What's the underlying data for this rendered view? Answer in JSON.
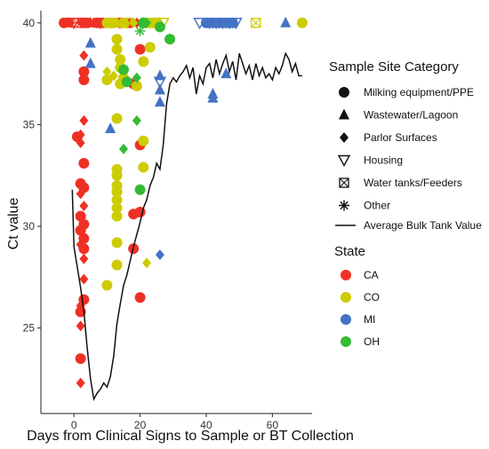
{
  "chart_data": {
    "type": "scatter",
    "title": "",
    "xlabel": "Days from Clinical Signs to Sample or BT Collection",
    "ylabel": "Ct value",
    "xlim": [
      -10,
      72
    ],
    "ylim": [
      20.8,
      40.6
    ],
    "x_ticks": [
      0,
      20,
      40,
      60
    ],
    "y_ticks": [
      25,
      30,
      35,
      40
    ],
    "grid": false,
    "legend_placement": "right",
    "legend_shape_title": "Sample Site Category",
    "legend_color_title": "State",
    "categories": [
      {
        "key": "milking",
        "label": "Milking equipment/PPE",
        "shape": "circle"
      },
      {
        "key": "wastewater",
        "label": "Wastewater/Lagoon",
        "shape": "triangle"
      },
      {
        "key": "parlor",
        "label": "Parlor Surfaces",
        "shape": "diamond"
      },
      {
        "key": "housing",
        "label": "Housing",
        "shape": "triangle-down-open"
      },
      {
        "key": "water",
        "label": "Water tanks/Feeders",
        "shape": "square-x-open"
      },
      {
        "key": "other",
        "label": "Other",
        "shape": "asterisk"
      }
    ],
    "line_legend_label": "Average Bulk Tank Value",
    "states": [
      {
        "key": "CA",
        "label": "CA",
        "color": "#ee3124"
      },
      {
        "key": "CO",
        "label": "CO",
        "color": "#cccc00"
      },
      {
        "key": "MI",
        "label": "MI",
        "color": "#4472c4"
      },
      {
        "key": "OH",
        "label": "OH",
        "color": "#33bb33"
      }
    ],
    "bulk_tank_line": [
      [
        -0.5,
        31.8
      ],
      [
        0,
        29.0
      ],
      [
        1,
        28.0
      ],
      [
        2,
        27.0
      ],
      [
        3,
        25.8
      ],
      [
        4,
        24.0
      ],
      [
        5,
        22.5
      ],
      [
        6,
        21.5
      ],
      [
        7,
        21.8
      ],
      [
        8,
        22.0
      ],
      [
        9,
        22.3
      ],
      [
        10,
        22.1
      ],
      [
        11,
        22.6
      ],
      [
        12,
        23.6
      ],
      [
        13,
        25.2
      ],
      [
        14,
        26.2
      ],
      [
        15,
        27.1
      ],
      [
        16,
        27.6
      ],
      [
        17,
        28.3
      ],
      [
        18,
        29.0
      ],
      [
        19,
        29.6
      ],
      [
        20,
        30.2
      ],
      [
        21,
        30.9
      ],
      [
        22,
        31.3
      ],
      [
        23,
        32.0
      ],
      [
        24,
        32.4
      ],
      [
        25,
        33.1
      ],
      [
        26,
        32.8
      ],
      [
        27,
        34.0
      ],
      [
        28,
        36.0
      ],
      [
        29,
        37.0
      ],
      [
        30,
        37.3
      ],
      [
        31,
        37.1
      ],
      [
        32,
        37.4
      ],
      [
        33,
        37.6
      ],
      [
        34,
        37.9
      ],
      [
        35,
        37.3
      ],
      [
        36,
        37.8
      ],
      [
        37,
        36.5
      ],
      [
        38,
        37.4
      ],
      [
        39,
        37.0
      ],
      [
        40,
        37.8
      ],
      [
        41,
        38.0
      ],
      [
        42,
        37.3
      ],
      [
        43,
        38.2
      ],
      [
        44,
        37.5
      ],
      [
        45,
        38.0
      ],
      [
        46,
        38.4
      ],
      [
        47,
        37.6
      ],
      [
        48,
        38.1
      ],
      [
        49,
        37.2
      ],
      [
        50,
        38.5
      ],
      [
        51,
        38.0
      ],
      [
        52,
        37.5
      ],
      [
        53,
        37.9
      ],
      [
        54,
        37.2
      ],
      [
        55,
        38.0
      ],
      [
        56,
        37.4
      ],
      [
        57,
        37.8
      ],
      [
        58,
        37.3
      ],
      [
        59,
        37.5
      ],
      [
        60,
        37.2
      ],
      [
        61,
        37.8
      ],
      [
        62,
        37.5
      ],
      [
        63,
        37.9
      ],
      [
        64,
        38.5
      ],
      [
        65,
        38.2
      ],
      [
        66,
        37.6
      ],
      [
        67,
        38.0
      ],
      [
        68,
        37.4
      ],
      [
        69,
        37.4
      ]
    ],
    "points": [
      {
        "x": -3,
        "y": 40,
        "cat": "milking",
        "state": "CA"
      },
      {
        "x": -2,
        "y": 40,
        "cat": "wastewater",
        "state": "CA"
      },
      {
        "x": -1,
        "y": 40,
        "cat": "parlor",
        "state": "CA"
      },
      {
        "x": 0,
        "y": 40,
        "cat": "housing",
        "state": "CA"
      },
      {
        "x": 1,
        "y": 40,
        "cat": "water",
        "state": "CA"
      },
      {
        "x": 2,
        "y": 40,
        "cat": "other",
        "state": "CA"
      },
      {
        "x": 3,
        "y": 40,
        "cat": "milking",
        "state": "CA"
      },
      {
        "x": 4,
        "y": 40,
        "cat": "milking",
        "state": "CA"
      },
      {
        "x": 5,
        "y": 40,
        "cat": "wastewater",
        "state": "CA"
      },
      {
        "x": 6,
        "y": 40,
        "cat": "parlor",
        "state": "CA"
      },
      {
        "x": 7,
        "y": 40,
        "cat": "milking",
        "state": "CA"
      },
      {
        "x": 8,
        "y": 40,
        "cat": "housing",
        "state": "CA"
      },
      {
        "x": 9,
        "y": 40,
        "cat": "milking",
        "state": "CA"
      },
      {
        "x": 14,
        "y": 40,
        "cat": "milking",
        "state": "CA"
      },
      {
        "x": 17,
        "y": 40,
        "cat": "milking",
        "state": "CA"
      },
      {
        "x": 19,
        "y": 40,
        "cat": "parlor",
        "state": "CA"
      },
      {
        "x": 21,
        "y": 40,
        "cat": "milking",
        "state": "CA"
      },
      {
        "x": 1,
        "y": 34.4,
        "cat": "milking",
        "state": "CA"
      },
      {
        "x": 2,
        "y": 34.5,
        "cat": "parlor",
        "state": "CA"
      },
      {
        "x": 3,
        "y": 35.2,
        "cat": "parlor",
        "state": "CA"
      },
      {
        "x": 2,
        "y": 34.1,
        "cat": "parlor",
        "state": "CA"
      },
      {
        "x": 3,
        "y": 38.4,
        "cat": "parlor",
        "state": "CA"
      },
      {
        "x": 3,
        "y": 37.6,
        "cat": "milking",
        "state": "CA"
      },
      {
        "x": 3,
        "y": 37.2,
        "cat": "milking",
        "state": "CA"
      },
      {
        "x": 3,
        "y": 33.1,
        "cat": "milking",
        "state": "CA"
      },
      {
        "x": 2,
        "y": 32.1,
        "cat": "milking",
        "state": "CA"
      },
      {
        "x": 3,
        "y": 31.9,
        "cat": "milking",
        "state": "CA"
      },
      {
        "x": 2,
        "y": 31.6,
        "cat": "parlor",
        "state": "CA"
      },
      {
        "x": 3,
        "y": 31.0,
        "cat": "parlor",
        "state": "CA"
      },
      {
        "x": 2,
        "y": 30.5,
        "cat": "milking",
        "state": "CA"
      },
      {
        "x": 3,
        "y": 30.1,
        "cat": "milking",
        "state": "CA"
      },
      {
        "x": 2,
        "y": 29.8,
        "cat": "milking",
        "state": "CA"
      },
      {
        "x": 3,
        "y": 29.4,
        "cat": "milking",
        "state": "CA"
      },
      {
        "x": 2,
        "y": 29.1,
        "cat": "parlor",
        "state": "CA"
      },
      {
        "x": 3,
        "y": 28.9,
        "cat": "milking",
        "state": "CA"
      },
      {
        "x": 3,
        "y": 28.4,
        "cat": "parlor",
        "state": "CA"
      },
      {
        "x": 3,
        "y": 27.4,
        "cat": "parlor",
        "state": "CA"
      },
      {
        "x": 3,
        "y": 26.4,
        "cat": "milking",
        "state": "CA"
      },
      {
        "x": 2,
        "y": 26.1,
        "cat": "parlor",
        "state": "CA"
      },
      {
        "x": 2,
        "y": 25.8,
        "cat": "milking",
        "state": "CA"
      },
      {
        "x": 2,
        "y": 25.1,
        "cat": "parlor",
        "state": "CA"
      },
      {
        "x": 2,
        "y": 23.5,
        "cat": "milking",
        "state": "CA"
      },
      {
        "x": 2,
        "y": 22.3,
        "cat": "parlor",
        "state": "CA"
      },
      {
        "x": 18,
        "y": 37.0,
        "cat": "milking",
        "state": "CA"
      },
      {
        "x": 20,
        "y": 38.7,
        "cat": "milking",
        "state": "CA"
      },
      {
        "x": 20,
        "y": 34.0,
        "cat": "milking",
        "state": "CA"
      },
      {
        "x": 20,
        "y": 30.7,
        "cat": "milking",
        "state": "CA"
      },
      {
        "x": 18,
        "y": 30.6,
        "cat": "milking",
        "state": "CA"
      },
      {
        "x": 18,
        "y": 28.9,
        "cat": "milking",
        "state": "CA"
      },
      {
        "x": 20,
        "y": 26.5,
        "cat": "milking",
        "state": "CA"
      },
      {
        "x": 10,
        "y": 40,
        "cat": "milking",
        "state": "CO"
      },
      {
        "x": 11,
        "y": 40,
        "cat": "housing",
        "state": "CO"
      },
      {
        "x": 12,
        "y": 40,
        "cat": "milking",
        "state": "CO"
      },
      {
        "x": 13,
        "y": 40,
        "cat": "wastewater",
        "state": "CO"
      },
      {
        "x": 15,
        "y": 40,
        "cat": "milking",
        "state": "CO"
      },
      {
        "x": 16,
        "y": 40,
        "cat": "housing",
        "state": "CO"
      },
      {
        "x": 18,
        "y": 40,
        "cat": "parlor",
        "state": "CO"
      },
      {
        "x": 22,
        "y": 40,
        "cat": "milking",
        "state": "CO"
      },
      {
        "x": 23,
        "y": 40,
        "cat": "housing",
        "state": "CO"
      },
      {
        "x": 24,
        "y": 40,
        "cat": "milking",
        "state": "CO"
      },
      {
        "x": 25,
        "y": 40,
        "cat": "milking",
        "state": "CO"
      },
      {
        "x": 26,
        "y": 40,
        "cat": "wastewater",
        "state": "CO"
      },
      {
        "x": 27,
        "y": 40,
        "cat": "housing",
        "state": "CO"
      },
      {
        "x": 55,
        "y": 40,
        "cat": "water",
        "state": "CO"
      },
      {
        "x": 69,
        "y": 40,
        "cat": "milking",
        "state": "CO"
      },
      {
        "x": 13,
        "y": 39.2,
        "cat": "milking",
        "state": "CO"
      },
      {
        "x": 13,
        "y": 38.7,
        "cat": "milking",
        "state": "CO"
      },
      {
        "x": 14,
        "y": 38.2,
        "cat": "milking",
        "state": "CO"
      },
      {
        "x": 14,
        "y": 37.8,
        "cat": "milking",
        "state": "CO"
      },
      {
        "x": 15,
        "y": 37.3,
        "cat": "milking",
        "state": "CO"
      },
      {
        "x": 14,
        "y": 37.0,
        "cat": "milking",
        "state": "CO"
      },
      {
        "x": 10,
        "y": 37.6,
        "cat": "parlor",
        "state": "CO"
      },
      {
        "x": 10,
        "y": 37.2,
        "cat": "milking",
        "state": "CO"
      },
      {
        "x": 12,
        "y": 37.4,
        "cat": "parlor",
        "state": "CO"
      },
      {
        "x": 19,
        "y": 36.9,
        "cat": "milking",
        "state": "CO"
      },
      {
        "x": 21,
        "y": 38.1,
        "cat": "milking",
        "state": "CO"
      },
      {
        "x": 23,
        "y": 38.8,
        "cat": "milking",
        "state": "CO"
      },
      {
        "x": 13,
        "y": 35.3,
        "cat": "milking",
        "state": "CO"
      },
      {
        "x": 13,
        "y": 32.8,
        "cat": "milking",
        "state": "CO"
      },
      {
        "x": 13,
        "y": 32.5,
        "cat": "milking",
        "state": "CO"
      },
      {
        "x": 13,
        "y": 32.0,
        "cat": "milking",
        "state": "CO"
      },
      {
        "x": 13,
        "y": 31.7,
        "cat": "milking",
        "state": "CO"
      },
      {
        "x": 13,
        "y": 31.3,
        "cat": "milking",
        "state": "CO"
      },
      {
        "x": 13,
        "y": 30.9,
        "cat": "milking",
        "state": "CO"
      },
      {
        "x": 13,
        "y": 30.5,
        "cat": "milking",
        "state": "CO"
      },
      {
        "x": 13,
        "y": 29.2,
        "cat": "milking",
        "state": "CO"
      },
      {
        "x": 13,
        "y": 28.1,
        "cat": "milking",
        "state": "CO"
      },
      {
        "x": 10,
        "y": 27.1,
        "cat": "milking",
        "state": "CO"
      },
      {
        "x": 21,
        "y": 34.2,
        "cat": "milking",
        "state": "CO"
      },
      {
        "x": 21,
        "y": 32.9,
        "cat": "milking",
        "state": "CO"
      },
      {
        "x": 22,
        "y": 28.2,
        "cat": "parlor",
        "state": "CO"
      },
      {
        "x": 38,
        "y": 40,
        "cat": "housing",
        "state": "MI"
      },
      {
        "x": 40,
        "y": 40,
        "cat": "milking",
        "state": "MI"
      },
      {
        "x": 41,
        "y": 40,
        "cat": "housing",
        "state": "MI"
      },
      {
        "x": 42,
        "y": 40,
        "cat": "milking",
        "state": "MI"
      },
      {
        "x": 43,
        "y": 40,
        "cat": "housing",
        "state": "MI"
      },
      {
        "x": 44,
        "y": 40,
        "cat": "milking",
        "state": "MI"
      },
      {
        "x": 45,
        "y": 40,
        "cat": "housing",
        "state": "MI"
      },
      {
        "x": 46,
        "y": 40,
        "cat": "milking",
        "state": "MI"
      },
      {
        "x": 47,
        "y": 40,
        "cat": "housing",
        "state": "MI"
      },
      {
        "x": 48,
        "y": 40,
        "cat": "milking",
        "state": "MI"
      },
      {
        "x": 49,
        "y": 40,
        "cat": "housing",
        "state": "MI"
      },
      {
        "x": 64,
        "y": 40,
        "cat": "wastewater",
        "state": "MI"
      },
      {
        "x": 5,
        "y": 39.0,
        "cat": "wastewater",
        "state": "MI"
      },
      {
        "x": 5,
        "y": 38.0,
        "cat": "wastewater",
        "state": "MI"
      },
      {
        "x": 26,
        "y": 37.4,
        "cat": "wastewater",
        "state": "MI"
      },
      {
        "x": 26,
        "y": 37.1,
        "cat": "housing",
        "state": "MI"
      },
      {
        "x": 26,
        "y": 36.7,
        "cat": "wastewater",
        "state": "MI"
      },
      {
        "x": 26,
        "y": 36.1,
        "cat": "wastewater",
        "state": "MI"
      },
      {
        "x": 42,
        "y": 36.5,
        "cat": "wastewater",
        "state": "MI"
      },
      {
        "x": 42,
        "y": 36.3,
        "cat": "wastewater",
        "state": "MI"
      },
      {
        "x": 46,
        "y": 37.5,
        "cat": "wastewater",
        "state": "MI"
      },
      {
        "x": 11,
        "y": 34.8,
        "cat": "wastewater",
        "state": "MI"
      },
      {
        "x": 26,
        "y": 28.6,
        "cat": "parlor",
        "state": "MI"
      },
      {
        "x": 21,
        "y": 40,
        "cat": "milking",
        "state": "OH"
      },
      {
        "x": 22,
        "y": 40,
        "cat": "parlor",
        "state": "OH"
      },
      {
        "x": 20,
        "y": 39.6,
        "cat": "other",
        "state": "OH"
      },
      {
        "x": 26,
        "y": 39.8,
        "cat": "milking",
        "state": "OH"
      },
      {
        "x": 29,
        "y": 39.2,
        "cat": "milking",
        "state": "OH"
      },
      {
        "x": 15,
        "y": 37.7,
        "cat": "milking",
        "state": "OH"
      },
      {
        "x": 16,
        "y": 37.1,
        "cat": "milking",
        "state": "OH"
      },
      {
        "x": 19,
        "y": 37.3,
        "cat": "parlor",
        "state": "OH"
      },
      {
        "x": 19,
        "y": 35.2,
        "cat": "parlor",
        "state": "OH"
      },
      {
        "x": 15,
        "y": 33.8,
        "cat": "parlor",
        "state": "OH"
      },
      {
        "x": 20,
        "y": 31.8,
        "cat": "milking",
        "state": "OH"
      }
    ]
  }
}
